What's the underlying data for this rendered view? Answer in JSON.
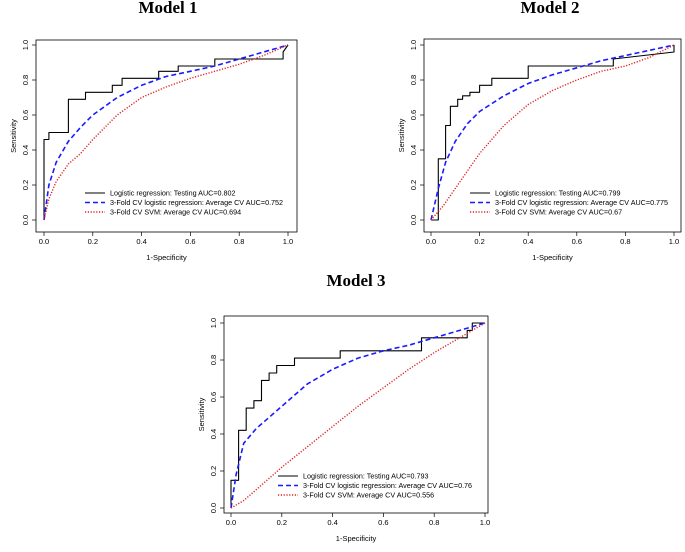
{
  "chart_data": [
    {
      "type": "line",
      "title": "Model 1",
      "xlabel": "1-Specificity",
      "ylabel": "Sensitivity",
      "xlim": [
        0,
        1
      ],
      "ylim": [
        0,
        1
      ],
      "xticks": [
        "0.0",
        "0.2",
        "0.4",
        "0.6",
        "0.8",
        "1.0"
      ],
      "yticks": [
        "0.0",
        "0.2",
        "0.4",
        "0.6",
        "0.8",
        "1.0"
      ],
      "legend_position": "bottom-right",
      "series": [
        {
          "name": "Logistic regression: Testing AUC=0.802",
          "style": "solid",
          "color": "#000000",
          "x": [
            0,
            0,
            0.02,
            0.02,
            0.1,
            0.1,
            0.17,
            0.17,
            0.28,
            0.28,
            0.32,
            0.32,
            0.47,
            0.47,
            0.55,
            0.55,
            0.7,
            0.7,
            0.98,
            0.98,
            1
          ],
          "y": [
            0,
            0.46,
            0.46,
            0.5,
            0.5,
            0.69,
            0.69,
            0.73,
            0.73,
            0.77,
            0.77,
            0.81,
            0.81,
            0.85,
            0.85,
            0.88,
            0.88,
            0.92,
            0.92,
            0.96,
            1
          ]
        },
        {
          "name": "3-Fold CV logistic regression: Average CV AUC=0.752",
          "style": "dashed",
          "color": "#1a1aff",
          "x": [
            0,
            0.02,
            0.05,
            0.1,
            0.15,
            0.2,
            0.3,
            0.4,
            0.5,
            0.6,
            0.7,
            0.8,
            0.9,
            1
          ],
          "y": [
            0,
            0.2,
            0.33,
            0.45,
            0.53,
            0.6,
            0.7,
            0.77,
            0.82,
            0.85,
            0.88,
            0.92,
            0.96,
            1
          ]
        },
        {
          "name": "3-Fold CV SVM: Average CV AUC=0.694",
          "style": "dotted",
          "color": "#e02020",
          "x": [
            0,
            0.02,
            0.05,
            0.1,
            0.15,
            0.2,
            0.3,
            0.4,
            0.5,
            0.6,
            0.7,
            0.8,
            0.9,
            1
          ],
          "y": [
            0,
            0.12,
            0.22,
            0.32,
            0.38,
            0.46,
            0.6,
            0.7,
            0.76,
            0.81,
            0.85,
            0.89,
            0.94,
            1
          ]
        }
      ]
    },
    {
      "type": "line",
      "title": "Model 2",
      "xlabel": "1-Specificity",
      "ylabel": "Sensitivity",
      "xlim": [
        0,
        1
      ],
      "ylim": [
        0,
        1
      ],
      "xticks": [
        "0.0",
        "0.2",
        "0.4",
        "0.6",
        "0.8",
        "1.0"
      ],
      "yticks": [
        "0.0",
        "0.2",
        "0.4",
        "0.6",
        "0.8",
        "1.0"
      ],
      "legend_position": "bottom-right",
      "series": [
        {
          "name": "Logistic regression: Testing AUC=0.799",
          "style": "solid",
          "color": "#000000",
          "x": [
            0,
            0.03,
            0.03,
            0.06,
            0.06,
            0.08,
            0.08,
            0.11,
            0.11,
            0.13,
            0.13,
            0.16,
            0.16,
            0.2,
            0.2,
            0.25,
            0.25,
            0.29,
            0.29,
            0.4,
            0.4,
            0.75,
            0.75,
            1,
            1
          ],
          "y": [
            0,
            0,
            0.35,
            0.35,
            0.54,
            0.54,
            0.65,
            0.65,
            0.69,
            0.69,
            0.71,
            0.71,
            0.73,
            0.73,
            0.77,
            0.77,
            0.81,
            0.81,
            0.81,
            0.81,
            0.88,
            0.88,
            0.92,
            0.96,
            1
          ]
        },
        {
          "name": "3-Fold CV logistic regression: Average CV AUC=0.775",
          "style": "dashed",
          "color": "#1a1aff",
          "x": [
            0,
            0.03,
            0.06,
            0.1,
            0.15,
            0.2,
            0.3,
            0.4,
            0.5,
            0.6,
            0.7,
            0.8,
            0.9,
            1
          ],
          "y": [
            0,
            0.18,
            0.33,
            0.45,
            0.55,
            0.62,
            0.71,
            0.78,
            0.83,
            0.87,
            0.91,
            0.94,
            0.97,
            1
          ]
        },
        {
          "name": "3-Fold CV SVM: Average CV AUC=0.67",
          "style": "dotted",
          "color": "#e02020",
          "x": [
            0,
            0.05,
            0.1,
            0.15,
            0.2,
            0.3,
            0.4,
            0.5,
            0.6,
            0.7,
            0.8,
            0.9,
            1
          ],
          "y": [
            0,
            0.08,
            0.18,
            0.28,
            0.38,
            0.54,
            0.66,
            0.74,
            0.8,
            0.85,
            0.88,
            0.93,
            1
          ]
        }
      ]
    },
    {
      "type": "line",
      "title": "Model 3",
      "xlabel": "1-Specificity",
      "ylabel": "Sensitivity",
      "xlim": [
        0,
        1
      ],
      "ylim": [
        0,
        1
      ],
      "xticks": [
        "0.0",
        "0.2",
        "0.4",
        "0.6",
        "0.8",
        "1.0"
      ],
      "yticks": [
        "0.0",
        "0.2",
        "0.4",
        "0.6",
        "0.8",
        "1.0"
      ],
      "legend_position": "bottom-right",
      "series": [
        {
          "name": "Logistic regression: Testing AUC=0.793",
          "style": "solid",
          "color": "#000000",
          "x": [
            0,
            0,
            0.03,
            0.03,
            0.06,
            0.06,
            0.09,
            0.09,
            0.12,
            0.12,
            0.15,
            0.15,
            0.18,
            0.18,
            0.25,
            0.25,
            0.43,
            0.43,
            0.75,
            0.75,
            0.93,
            0.93,
            0.95,
            0.95,
            1
          ],
          "y": [
            0,
            0.15,
            0.15,
            0.42,
            0.42,
            0.54,
            0.54,
            0.58,
            0.58,
            0.69,
            0.69,
            0.73,
            0.73,
            0.77,
            0.77,
            0.81,
            0.81,
            0.85,
            0.85,
            0.92,
            0.92,
            0.96,
            0.96,
            1,
            1
          ]
        },
        {
          "name": "3-Fold CV logistic regression: Average CV AUC=0.76",
          "style": "dashed",
          "color": "#1a1aff",
          "x": [
            0,
            0.02,
            0.05,
            0.1,
            0.15,
            0.2,
            0.3,
            0.4,
            0.5,
            0.6,
            0.7,
            0.8,
            0.9,
            1
          ],
          "y": [
            0,
            0.18,
            0.35,
            0.43,
            0.49,
            0.55,
            0.67,
            0.75,
            0.81,
            0.85,
            0.88,
            0.92,
            0.96,
            1
          ]
        },
        {
          "name": "3-Fold CV SVM: Average CV AUC=0.556",
          "style": "dotted",
          "color": "#e02020",
          "x": [
            0,
            0.05,
            0.1,
            0.2,
            0.3,
            0.4,
            0.5,
            0.6,
            0.7,
            0.8,
            0.9,
            1
          ],
          "y": [
            0,
            0.04,
            0.1,
            0.22,
            0.33,
            0.44,
            0.55,
            0.65,
            0.75,
            0.84,
            0.92,
            1
          ]
        }
      ]
    }
  ]
}
